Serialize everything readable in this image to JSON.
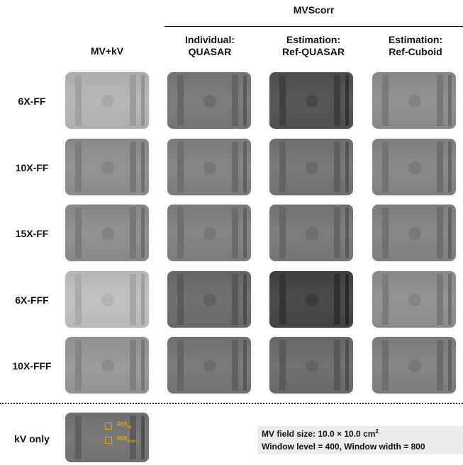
{
  "header": {
    "group_title": "MVScorr",
    "columns": [
      {
        "line1": "MV+kV",
        "line2": ""
      },
      {
        "line1": "Individual:",
        "line2": "QUASAR"
      },
      {
        "line1": "Estimation:",
        "line2": "Ref-QUASAR"
      },
      {
        "line1": "Estimation:",
        "line2": "Ref-Cuboid"
      }
    ]
  },
  "rows": [
    {
      "label": "6X-FF"
    },
    {
      "label": "10X-FF"
    },
    {
      "label": "15X-FF"
    },
    {
      "label": "6X-FFF"
    },
    {
      "label": "10X-FFF"
    }
  ],
  "kv_only": {
    "label": "kV only",
    "roi_bg": {
      "main": "ROI",
      "sub": "bg"
    },
    "roi_target": {
      "main": "ROI",
      "sub": "target"
    }
  },
  "info": {
    "line1_prefix": "MV field size: 10.0 × 10.0 cm",
    "line1_sup": "2",
    "line2": "Window level = 400, Window width = 800"
  },
  "colors": {
    "roi": "#e0a800"
  }
}
